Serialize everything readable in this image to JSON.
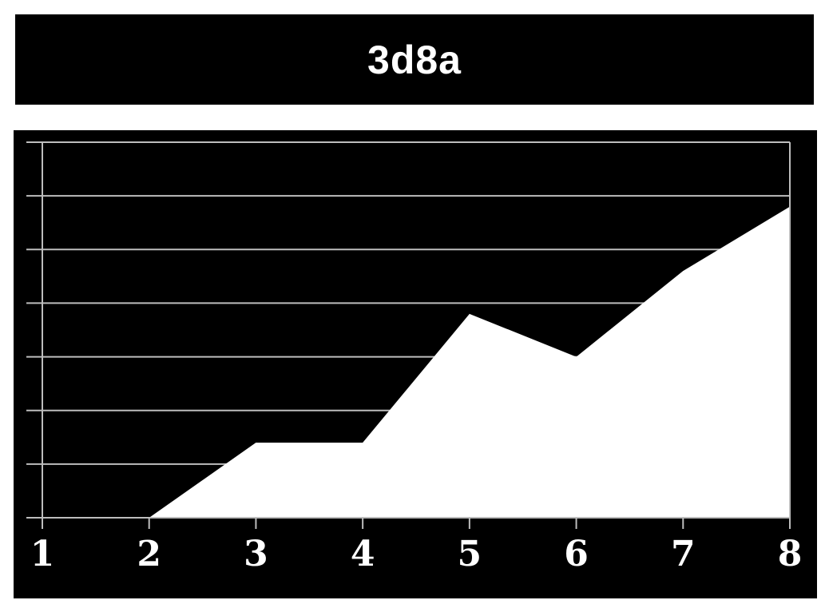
{
  "title": "3d8a",
  "colors": {
    "background": "#000000",
    "area_fill": "#ffffff",
    "grid": "#bdbdbd",
    "text": "#ffffff"
  },
  "chart_data": {
    "type": "area",
    "title": "3d8a",
    "xlabel": "",
    "ylabel": "",
    "x": [
      1,
      2,
      3,
      4,
      5,
      6,
      7,
      8
    ],
    "x_tick_labels": [
      "1",
      "2",
      "3",
      "4",
      "5",
      "6",
      "7",
      "8"
    ],
    "series": [
      {
        "values": [
          null,
          0,
          1.4,
          1.4,
          3.8,
          3.0,
          4.6,
          5.8
        ]
      }
    ],
    "ylim": [
      0,
      7
    ],
    "y_gridlines": [
      1,
      2,
      3,
      4,
      5,
      6,
      7
    ],
    "grid": true,
    "y_tick_labels_shown": false
  }
}
